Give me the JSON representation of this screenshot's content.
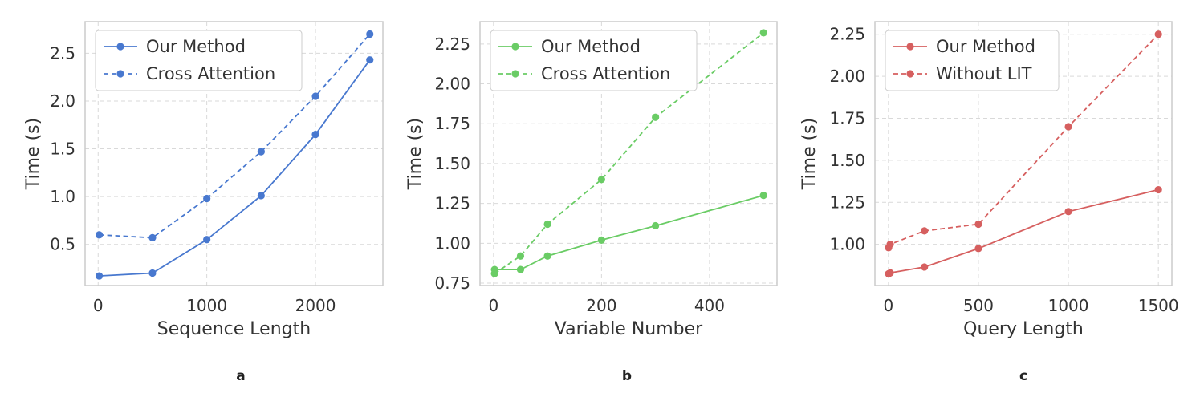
{
  "chart_data": [
    {
      "type": "line",
      "panel_label": "a",
      "title": "",
      "xlabel": "Sequence Length",
      "ylabel": "Time (s)",
      "xlim": [
        -120,
        2620
      ],
      "ylim": [
        0.07,
        2.83
      ],
      "xticks": [
        0,
        1000,
        2000
      ],
      "yticks": [
        0.5,
        1.0,
        1.5,
        2.0,
        2.5
      ],
      "ytick_labels": [
        "0.5",
        "1.0",
        "1.5",
        "2.0",
        "2.5"
      ],
      "color": "#4878cf",
      "grid": true,
      "legend_position": "upper-left",
      "series": [
        {
          "name": "Our Method",
          "style": "solid",
          "x": [
            10,
            500,
            1000,
            1500,
            2000,
            2500
          ],
          "y": [
            0.17,
            0.2,
            0.55,
            1.01,
            1.65,
            2.43
          ]
        },
        {
          "name": "Cross Attention",
          "style": "dashed",
          "x": [
            10,
            500,
            1000,
            1500,
            2000,
            2500
          ],
          "y": [
            0.6,
            0.57,
            0.98,
            1.47,
            2.05,
            2.7
          ]
        }
      ]
    },
    {
      "type": "line",
      "panel_label": "b",
      "title": "",
      "xlabel": "Variable Number",
      "ylabel": "Time (s)",
      "xlim": [
        -25,
        525
      ],
      "ylim": [
        0.735,
        2.39
      ],
      "xticks": [
        0,
        200,
        400
      ],
      "yticks": [
        0.75,
        1.0,
        1.25,
        1.5,
        1.75,
        2.0,
        2.25
      ],
      "ytick_labels": [
        "0.75",
        "1.00",
        "1.25",
        "1.50",
        "1.75",
        "2.00",
        "2.25"
      ],
      "color": "#6acc65",
      "grid": true,
      "legend_position": "upper-left",
      "series": [
        {
          "name": "Our Method",
          "style": "solid",
          "x": [
            2,
            50,
            100,
            200,
            300,
            500
          ],
          "y": [
            0.835,
            0.835,
            0.92,
            1.02,
            1.11,
            1.3
          ]
        },
        {
          "name": "Cross Attention",
          "style": "dashed",
          "x": [
            2,
            50,
            100,
            200,
            300,
            500
          ],
          "y": [
            0.81,
            0.92,
            1.12,
            1.4,
            1.79,
            2.32
          ]
        }
      ]
    },
    {
      "type": "line",
      "panel_label": "c",
      "title": "",
      "xlabel": "Query Length",
      "ylabel": "Time (s)",
      "xlim": [
        -75,
        1575
      ],
      "ylim": [
        0.755,
        2.325
      ],
      "xticks": [
        0,
        500,
        1000,
        1500
      ],
      "yticks": [
        1.0,
        1.25,
        1.5,
        1.75,
        2.0,
        2.25
      ],
      "ytick_labels": [
        "1.00",
        "1.25",
        "1.50",
        "1.75",
        "2.00",
        "2.25"
      ],
      "color": "#d65f5f",
      "grid": true,
      "legend_position": "upper-left",
      "series": [
        {
          "name": "Our Method",
          "style": "solid",
          "x": [
            1,
            10,
            200,
            500,
            1000,
            1500
          ],
          "y": [
            0.825,
            0.83,
            0.865,
            0.975,
            1.195,
            1.325
          ]
        },
        {
          "name": "Without LIT",
          "style": "dashed",
          "x": [
            1,
            10,
            200,
            500,
            1000,
            1500
          ],
          "y": [
            0.98,
            1.0,
            1.08,
            1.12,
            1.7,
            2.25
          ]
        }
      ]
    }
  ]
}
